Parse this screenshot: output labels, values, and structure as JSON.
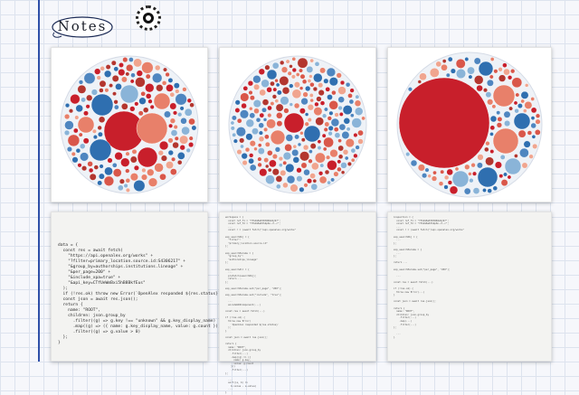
{
  "header": {
    "logo_text": "Notes",
    "logo_icon": "notes-cloud-logo",
    "badge_icon": "dotted-circle-badge"
  },
  "colors": {
    "margin_line": "#2f4fa8",
    "bubble_red": "#c81f2b",
    "bubble_orange": "#e8806a",
    "bubble_blue": "#2f6fb0",
    "bubble_light_blue": "#8ab4d8"
  },
  "gallery": {
    "bubble_charts": [
      {
        "name": "bubble-chart-thumbnail-1"
      },
      {
        "name": "bubble-chart-thumbnail-2"
      },
      {
        "name": "bubble-chart-thumbnail-3"
      }
    ],
    "code_snippet": {
      "lines": [
        "data = {",
        "  const res = await fetch(",
        "    \"https://api.openalex.org/works\" +",
        "    \"?filter=primary_location.source.id:S4306217\" +",
        "    \"&group_by=authorships.institutions.lineage\" +",
        "    \"&per_page=200\" +",
        "    \"&include_xpa=true\" +",
        "    \"&api_key=CTfUeWmBxi5hB8BkfEus\"",
        "  );",
        "  if (!res.ok) throw new Error(`OpenAlex responded ${res.status}`);",
        "  const json = await res.json();",
        "  return {",
        "    name: \"ROOT\",",
        "    children: json.group_by",
        "      .filter((g) => g.key !== \"unknown\" && g.key_display_name)",
        "      .map((g) => ({ name: g.key_display_name, value: g.count }))",
        "      .filter((g) => g.value > 0)",
        "  };",
        "}"
      ]
    },
    "code_thumbnails": [
      {
        "text": "workspace = {\n  const ref_f1 = \"f3Sdm8aKtRtWR4e9y97\";\n  const ref_f2 = \"f3Sdm8aKtSbp6n.cl.c\";\n  ...\n  const r = (await fetch(\"/api.openalex.org/works\"\n\nexp_searchObj = {\n  \"filter\":\n  \"primary_location.source.id\"\n};\n\nexp_searchParams = {\n  \"group_by\":\n  \"authorships_lineage\"\n};\n\nexp_searchAll = {\n  ...\n  prefetch(searchObj);\n  return ...\n};\n\nexp_searchParams.set(\"per_page\", \"200\");\n\nexp_searchParams.set(\"include\", \"true\");\n\n  ...\n  encodeURIComponent(...)\n\nconst res = await fetch(...)\n\nif (!res.ok) {\n  throw new Error(\n    `OpenAlex responded ${res.status}`\n  );\n}\n\nconst json = await res.json();\n\nreturn {\n  name: \"ROOT\",\n  children: json.group_by\n    .filter(...)\n    .map((g) => ({\n      name: g.key,\n      value: g.count\n    }))\n    .filter(...)\n};\n\n  ...\n  sort((a, b) =>\n    b.value - a.value)\n  ...\n}"
      },
      {
        "text": "inspection = {\n  const ref_f1 = \"f3Sdm8aKtRtWR4e9y97\";\n  const ref_f2 = \"f3Sdm8aKtSbp6n.cl.c\";\n  ...\n  const r = (await fetch(\"/api.openalex.org/works\"\n\nexp_searchObj = {\n  ...\n};\n\nexp_searchParams = {\n  ...\n};\n\nreturn ...\n\nexp_searchParams.set(\"per_page\", \"200\");\n\n  ...\n\nconst res = await fetch(...)\n\nif (!res.ok) {\n  throw new Error(...)\n}\n\nconst json = await res.json();\n\nreturn {\n  name: \"ROOT\",\n  children: json.group_by\n    .filter(...)\n    .map(...)\n    .filter(...)\n};\n\n  ...\n}"
      }
    ]
  }
}
